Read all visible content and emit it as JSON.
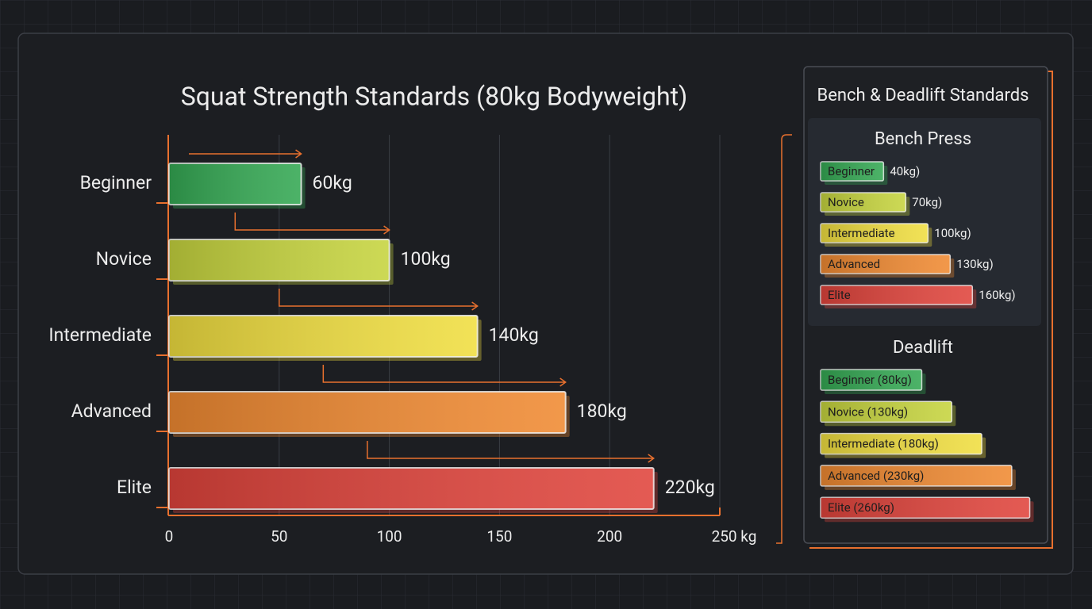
{
  "chart_data": [
    {
      "type": "bar",
      "orientation": "horizontal",
      "title": "Squat Strength Standards (80kg Bodyweight)",
      "categories": [
        "Beginner",
        "Novice",
        "Intermediate",
        "Advanced",
        "Elite"
      ],
      "values": [
        60,
        100,
        140,
        180,
        220
      ],
      "value_labels": [
        "60kg",
        "100kg",
        "140kg",
        "180kg",
        "220kg"
      ],
      "colors": [
        "#34a853",
        "#c6d43e",
        "#f0de40",
        "#f08a32",
        "#e0443c"
      ],
      "xlim": [
        0,
        250
      ],
      "xticks": [
        0,
        50,
        100,
        150,
        200,
        {
          "value": 250,
          "label": "250 kg"
        }
      ],
      "grid": true
    },
    {
      "type": "bar",
      "orientation": "horizontal",
      "title": "Bench Press",
      "categories": [
        "Beginner",
        "Novice",
        "Intermediate",
        "Advanced",
        "Elite"
      ],
      "values": [
        40,
        70,
        100,
        130,
        160
      ],
      "value_labels": [
        "40kg)",
        "70kg)",
        "100kg)",
        "130kg)",
        "160kg)"
      ],
      "colors": [
        "#34a853",
        "#c6d43e",
        "#f0de40",
        "#f08a32",
        "#e0443c"
      ]
    },
    {
      "type": "bar",
      "orientation": "horizontal",
      "title": "Deadlift",
      "categories": [
        "Beginner (80kg)",
        "Novice (130kg)",
        "Intermediate (180kg)",
        "Advanced (230kg)",
        "Elite (260kg)"
      ],
      "values": [
        80,
        130,
        180,
        230,
        260
      ],
      "colors": [
        "#34a853",
        "#c6d43e",
        "#f0de40",
        "#f08a32",
        "#e0443c"
      ]
    }
  ],
  "panel": {
    "title": "Bench & Deadlift Standards"
  }
}
